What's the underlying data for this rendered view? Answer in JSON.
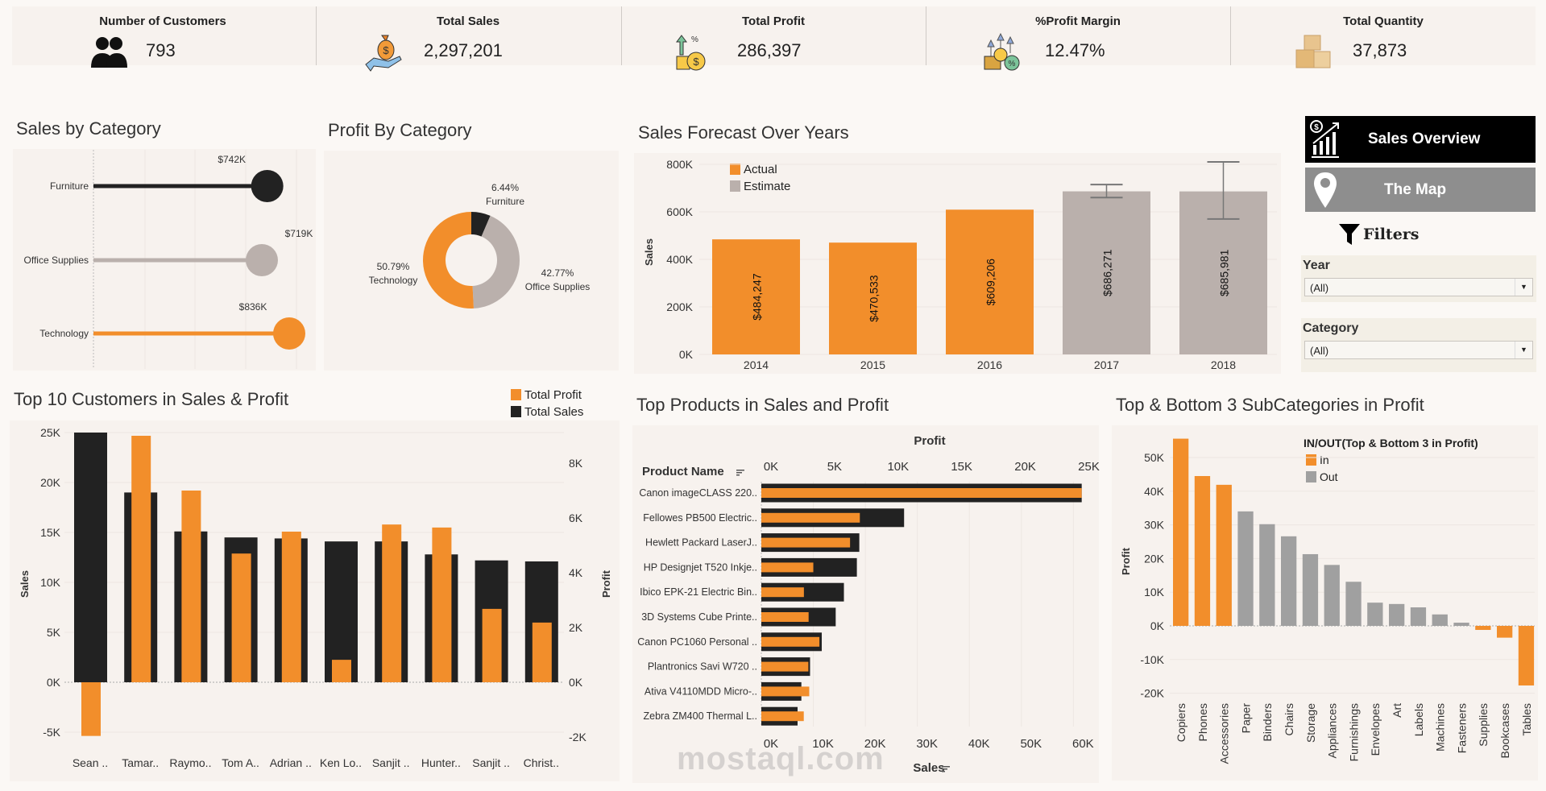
{
  "kpis": [
    {
      "title": "Number of Customers",
      "value": "793",
      "icon": "people-icon"
    },
    {
      "title": "Total Sales",
      "value": "2,297,201",
      "icon": "money-bag-hand-icon"
    },
    {
      "title": "Total Profit",
      "value": "286,397",
      "icon": "coins-growth-icon"
    },
    {
      "title": "%Profit Margin",
      "value": "12.47%",
      "icon": "profit-margin-icon"
    },
    {
      "title": "Total Quantity",
      "value": "37,873",
      "icon": "boxes-icon"
    }
  ],
  "nav": {
    "sales_overview": "Sales Overview",
    "the_map": "The Map",
    "filters": "Filters"
  },
  "filters": {
    "year": {
      "label": "Year",
      "value": "(All)"
    },
    "category": {
      "label": "Category",
      "value": "(All)"
    }
  },
  "watermark": "mostaql.com",
  "colors": {
    "orange": "#f28e2b",
    "dark": "#222222",
    "gray": "#bab0ac",
    "out_gray": "#a0a0a0"
  },
  "chart_data": [
    {
      "type": "bar",
      "title": "Sales by Category",
      "categories": [
        "Furniture",
        "Office Supplies",
        "Technology"
      ],
      "values": [
        742000,
        719000,
        836000
      ],
      "value_labels": [
        "$742K",
        "$719K",
        "$836K"
      ],
      "colors": [
        "#222222",
        "#bab0ac",
        "#f28e2b"
      ]
    },
    {
      "type": "pie",
      "title": "Profit By Category",
      "labels": [
        "Furniture",
        "Office Supplies",
        "Technology"
      ],
      "values": [
        6.44,
        42.77,
        50.79
      ],
      "value_labels": [
        "6.44%",
        "42.77%",
        "50.79%"
      ],
      "colors": [
        "#222222",
        "#bab0ac",
        "#f28e2b"
      ]
    },
    {
      "type": "bar",
      "title": "Sales Forecast Over Years",
      "ylabel": "Sales",
      "categories": [
        "2014",
        "2015",
        "2016",
        "2017",
        "2018"
      ],
      "values": [
        484247,
        470533,
        609206,
        686271,
        685981
      ],
      "value_labels": [
        "$484,247",
        "$470,533",
        "$609,206",
        "$686,271",
        "$685,981"
      ],
      "kind": [
        "Actual",
        "Actual",
        "Actual",
        "Estimate",
        "Estimate"
      ],
      "error_bars": [
        null,
        null,
        null,
        [
          660000,
          715000
        ],
        [
          570000,
          810000
        ]
      ],
      "legend": [
        {
          "name": "Actual",
          "color": "#f28e2b"
        },
        {
          "name": "Estimate",
          "color": "#bab0ac"
        }
      ],
      "yticks": [
        0,
        200000,
        400000,
        600000,
        800000
      ],
      "ytick_labels": [
        "0K",
        "200K",
        "400K",
        "600K",
        "800K"
      ],
      "ylim": [
        0,
        800000
      ]
    },
    {
      "type": "bar",
      "title": "Top 10 Customers in Sales & Profit",
      "categories": [
        "Sean ..",
        "Tamar..",
        "Raymo..",
        "Tom A..",
        "Adrian ..",
        "Ken Lo..",
        "Sanjit ..",
        "Hunter..",
        "Sanjit ..",
        "Christ.."
      ],
      "series": [
        {
          "name": "Total Sales",
          "axis": "left",
          "color": "#222222",
          "values": [
            25000,
            19000,
            15100,
            14500,
            14400,
            14100,
            14100,
            12800,
            12200,
            12100
          ]
        },
        {
          "name": "Total Profit",
          "axis": "right",
          "color": "#f28e2b",
          "values": [
            -1960,
            9000,
            7000,
            4700,
            5500,
            820,
            5760,
            5650,
            2680,
            2180
          ]
        }
      ],
      "ylabel": "Sales",
      "y2label": "Profit",
      "yticks": [
        -5000,
        0,
        5000,
        10000,
        15000,
        20000,
        25000
      ],
      "ytick_labels": [
        "-5K",
        "0K",
        "5K",
        "10K",
        "15K",
        "20K",
        "25K"
      ],
      "y2ticks": [
        -2000,
        0,
        2000,
        4000,
        6000,
        8000
      ],
      "y2tick_labels": [
        "-2K",
        "0K",
        "2K",
        "4K",
        "6K",
        "8K"
      ],
      "legend": [
        "Total Profit",
        "Total Sales"
      ]
    },
    {
      "type": "bar",
      "orientation": "horizontal",
      "title": "Top Products in Sales and Profit",
      "row_header": "Product Name",
      "categories": [
        "Canon imageCLASS 220..",
        "Fellowes PB500 Electric..",
        "Hewlett Packard LaserJ..",
        "HP Designjet T520 Inkje..",
        "Ibico EPK-21 Electric Bin..",
        "3D Systems Cube Printe..",
        "Canon PC1060 Personal ..",
        "Plantronics Savi W720 ..",
        "Ativa V4110MDD Micro-..",
        "Zebra ZM400 Thermal L.."
      ],
      "series": [
        {
          "name": "Sales",
          "color": "#222222",
          "values": [
            61600,
            27450,
            18840,
            18370,
            15880,
            14300,
            11620,
            9370,
            7700,
            6970
          ]
        },
        {
          "name": "Profit",
          "color": "#f28e2b",
          "values": [
            25200,
            7750,
            6980,
            4090,
            3350,
            3720,
            4570,
            3700,
            3770,
            3340
          ]
        }
      ],
      "top_axis_label": "Profit",
      "bottom_axis_label": "Sales",
      "profit_ticks": [
        0,
        5000,
        10000,
        15000,
        20000,
        25000
      ],
      "profit_tick_labels": [
        "0K",
        "5K",
        "10K",
        "15K",
        "20K",
        "25K"
      ],
      "sales_ticks": [
        0,
        10000,
        20000,
        30000,
        40000,
        50000,
        60000
      ],
      "sales_tick_labels": [
        "0K",
        "10K",
        "20K",
        "30K",
        "40K",
        "50K",
        "60K"
      ]
    },
    {
      "type": "bar",
      "title": "Top & Bottom 3 SubCategories in Profit",
      "ylabel": "Profit",
      "categories": [
        "Copiers",
        "Phones",
        "Accessories",
        "Paper",
        "Binders",
        "Chairs",
        "Storage",
        "Appliances",
        "Furnishings",
        "Envelopes",
        "Art",
        "Labels",
        "Machines",
        "Fasteners",
        "Supplies",
        "Bookcases",
        "Tables"
      ],
      "values": [
        55600,
        44500,
        41900,
        34000,
        30200,
        26600,
        21300,
        18100,
        13100,
        6900,
        6500,
        5500,
        3400,
        950,
        -1200,
        -3500,
        -17700
      ],
      "group": [
        "In",
        "In",
        "In",
        "Out",
        "Out",
        "Out",
        "Out",
        "Out",
        "Out",
        "Out",
        "Out",
        "Out",
        "Out",
        "Out",
        "In",
        "In",
        "In"
      ],
      "legend_title": "IN/OUT(Top & Bottom 3 in Profit)",
      "legend": [
        {
          "name": "In",
          "color": "#f28e2b"
        },
        {
          "name": "Out",
          "color": "#a0a0a0"
        }
      ],
      "yticks": [
        -20000,
        -10000,
        0,
        10000,
        20000,
        30000,
        40000,
        50000
      ],
      "ytick_labels": [
        "-20K",
        "-10K",
        "0K",
        "10K",
        "20K",
        "30K",
        "40K",
        "50K"
      ]
    }
  ]
}
